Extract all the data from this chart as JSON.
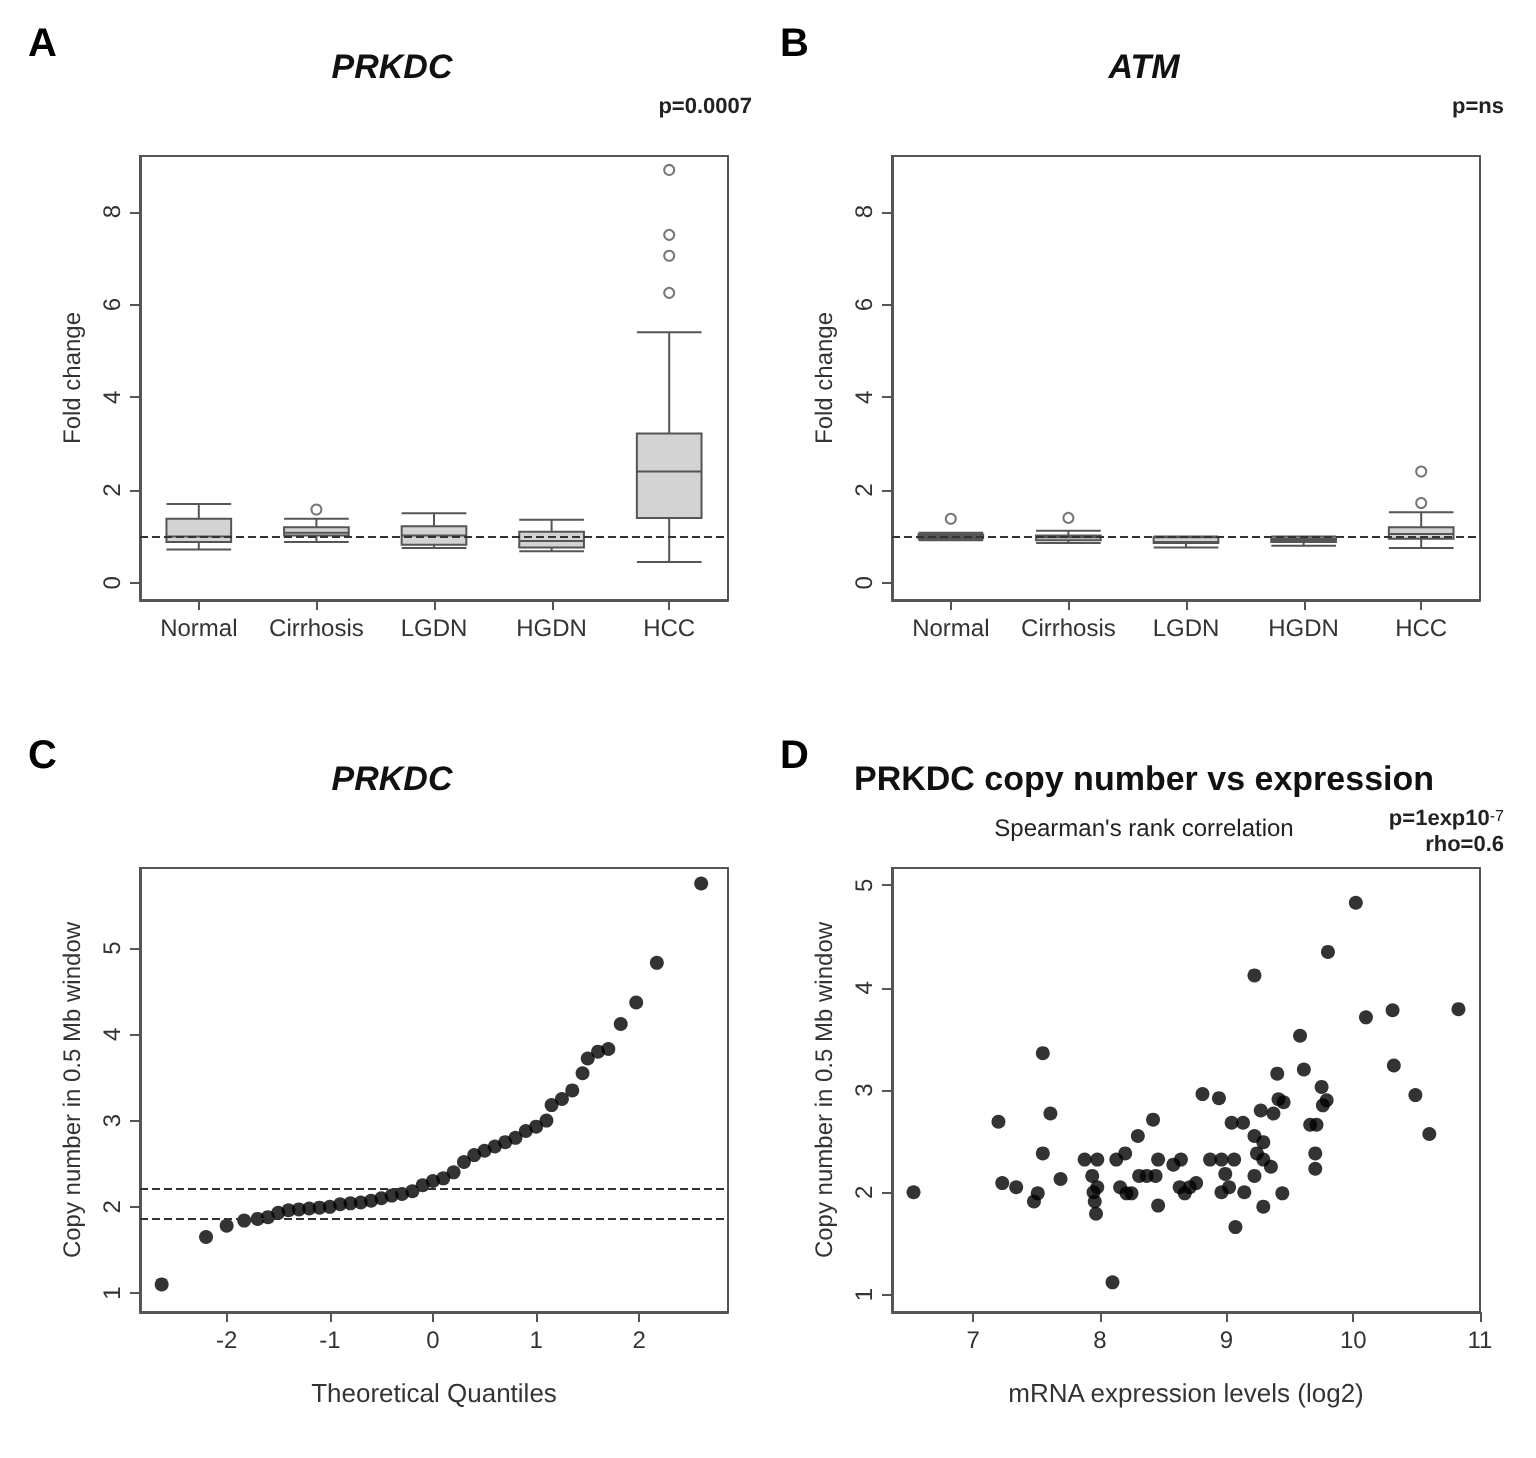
{
  "chart_data": [
    {
      "type": "box",
      "title": "PRKDC",
      "ylabel": "Fold change",
      "categories": [
        "Normal",
        "Cirrhosis",
        "LGDN",
        "HGDN",
        "HCC"
      ],
      "ylim": [
        -0.37,
        9.2
      ],
      "yticks": [
        0,
        2,
        4,
        6,
        8
      ],
      "grid": false,
      "annotations": [
        "A",
        "p=0.0007"
      ],
      "ref_lines": [
        {
          "axis": "y",
          "value": 1,
          "line_style": "dashed"
        }
      ],
      "series": [
        {
          "color": "#d3d3d3",
          "boxes": [
            {
              "low": 0.72,
              "q1": 0.88,
              "median": 1.0,
              "q3": 1.38,
              "high": 1.7
            },
            {
              "low": 0.88,
              "q1": 1.02,
              "median": 1.08,
              "q3": 1.2,
              "high": 1.38,
              "outliers": [
                1.58
              ]
            },
            {
              "low": 0.75,
              "q1": 0.82,
              "median": 1.02,
              "q3": 1.22,
              "high": 1.5
            },
            {
              "low": 0.68,
              "q1": 0.76,
              "median": 0.9,
              "q3": 1.1,
              "high": 1.36
            },
            {
              "low": 0.45,
              "q1": 1.4,
              "median": 2.4,
              "q3": 3.22,
              "high": 5.4,
              "outliers": [
                6.25,
                7.05,
                7.5,
                8.9
              ]
            }
          ]
        }
      ]
    },
    {
      "type": "box",
      "title": "ATM",
      "ylabel": "Fold change",
      "categories": [
        "Normal",
        "Cirrhosis",
        "LGDN",
        "HGDN",
        "HCC"
      ],
      "ylim": [
        -0.37,
        9.2
      ],
      "yticks": [
        0,
        2,
        4,
        6,
        8
      ],
      "grid": false,
      "annotations": [
        "B",
        "p=ns"
      ],
      "ref_lines": [
        {
          "axis": "y",
          "value": 1,
          "line_style": "dashed"
        }
      ],
      "series": [
        {
          "color": "#d3d3d3",
          "boxes": [
            {
              "low": 0.92,
              "q1": 0.96,
              "median": 1.0,
              "q3": 1.04,
              "high": 1.08,
              "outliers": [
                1.38
              ]
            },
            {
              "low": 0.86,
              "q1": 0.92,
              "median": 0.98,
              "q3": 1.02,
              "high": 1.12,
              "outliers": [
                1.4
              ]
            },
            {
              "low": 0.76,
              "q1": 0.86,
              "median": 0.88,
              "q3": 0.98,
              "high": 1.0
            },
            {
              "low": 0.8,
              "q1": 0.88,
              "median": 0.92,
              "q3": 0.95,
              "high": 1.0
            },
            {
              "low": 0.75,
              "q1": 0.95,
              "median": 1.05,
              "q3": 1.2,
              "high": 1.52,
              "outliers": [
                1.72,
                2.4
              ]
            }
          ]
        }
      ]
    },
    {
      "type": "scatter",
      "title": "PRKDC",
      "xlabel": "Theoretical Quantiles",
      "ylabel": "Copy number in 0.5 Mb window",
      "xlim": [
        -2.84,
        2.86
      ],
      "xticks": [
        -2,
        -1,
        0,
        1,
        2
      ],
      "ylim": [
        0.78,
        5.93
      ],
      "yticks": [
        1,
        2,
        3,
        4,
        5
      ],
      "grid": false,
      "marker": "circle",
      "annotations": [
        "C"
      ],
      "ref_lines": [
        {
          "axis": "y",
          "value": 2.22,
          "line_style": "dashed"
        },
        {
          "axis": "y",
          "value": 1.87,
          "line_style": "dashed"
        }
      ],
      "x": [
        -2.63,
        -2.2,
        -2.0,
        -1.83,
        -1.7,
        -1.6,
        -1.5,
        -1.4,
        -1.3,
        -1.2,
        -1.1,
        -1.0,
        -0.9,
        -0.8,
        -0.7,
        -0.6,
        -0.5,
        -0.4,
        -0.3,
        -0.2,
        -0.1,
        0,
        0.1,
        0.2,
        0.3,
        0.4,
        0.5,
        0.6,
        0.7,
        0.8,
        0.9,
        1.0,
        1.1,
        1.15,
        1.25,
        1.35,
        1.45,
        1.5,
        1.6,
        1.7,
        1.82,
        1.97,
        2.17,
        2.6
      ],
      "series": [
        {
          "color": "#000000",
          "values": [
            1.1,
            1.65,
            1.78,
            1.84,
            1.86,
            1.88,
            1.93,
            1.96,
            1.97,
            1.98,
            1.99,
            2.0,
            2.03,
            2.04,
            2.05,
            2.07,
            2.1,
            2.13,
            2.15,
            2.18,
            2.25,
            2.3,
            2.33,
            2.4,
            2.52,
            2.6,
            2.65,
            2.7,
            2.75,
            2.8,
            2.88,
            2.93,
            3.0,
            3.18,
            3.25,
            3.35,
            3.55,
            3.72,
            3.8,
            3.83,
            4.12,
            4.37,
            4.83,
            5.75
          ]
        }
      ]
    },
    {
      "type": "scatter",
      "title": "PRKDC copy number vs expression",
      "subtitle": "Spearman's rank correlation",
      "xlabel": "mRNA expression levels (log2)",
      "ylabel": "Copy number in 0.5 Mb window",
      "xlim": [
        6.36,
        11.0
      ],
      "xticks": [
        7,
        8,
        9,
        10,
        11
      ],
      "ylim": [
        0.83,
        5.17
      ],
      "yticks": [
        1,
        2,
        3,
        4,
        5
      ],
      "grid": false,
      "marker": "circle",
      "annotations": [
        "D",
        "p=1exp10$^{-7}$",
        "rho=0.6"
      ],
      "x": [
        6.53,
        7.2,
        7.23,
        7.34,
        7.48,
        7.51,
        7.55,
        7.55,
        7.61,
        7.69,
        7.88,
        7.94,
        7.95,
        7.96,
        7.97,
        7.98,
        7.98,
        8.1,
        8.13,
        8.16,
        8.2,
        8.21,
        8.25,
        8.3,
        8.31,
        8.37,
        8.42,
        8.44,
        8.46,
        8.46,
        8.58,
        8.63,
        8.64,
        8.67,
        8.71,
        8.76,
        8.81,
        8.87,
        8.94,
        8.96,
        8.96,
        8.99,
        9.02,
        9.04,
        9.06,
        9.07,
        9.13,
        9.14,
        9.22,
        9.22,
        9.22,
        9.24,
        9.27,
        9.29,
        9.29,
        9.29,
        9.35,
        9.37,
        9.4,
        9.41,
        9.44,
        9.45,
        9.58,
        9.61,
        9.66,
        9.7,
        9.7,
        9.71,
        9.75,
        9.76,
        9.79,
        9.8,
        10.02,
        10.1,
        10.31,
        10.32,
        10.49,
        10.6,
        10.83
      ],
      "series": [
        {
          "color": "#000000",
          "values": [
            2.0,
            2.69,
            2.09,
            2.05,
            1.91,
            1.99,
            3.36,
            2.38,
            2.77,
            2.13,
            2.32,
            2.16,
            2.0,
            1.91,
            1.79,
            2.32,
            2.05,
            1.12,
            2.32,
            2.05,
            2.38,
            1.99,
            1.99,
            2.55,
            2.16,
            2.16,
            2.71,
            2.16,
            2.32,
            1.87,
            2.27,
            2.05,
            2.32,
            1.99,
            2.05,
            2.09,
            2.96,
            2.32,
            2.92,
            2.32,
            2.0,
            2.18,
            2.05,
            2.68,
            2.32,
            1.66,
            2.68,
            2.0,
            2.55,
            4.12,
            2.16,
            2.38,
            2.8,
            2.49,
            2.32,
            1.86,
            2.25,
            2.77,
            3.16,
            2.91,
            1.99,
            2.88,
            3.53,
            3.2,
            2.66,
            2.38,
            2.23,
            2.66,
            3.03,
            2.85,
            2.9,
            4.35,
            4.83,
            3.71,
            3.78,
            3.24,
            2.95,
            2.57,
            3.79
          ]
        }
      ]
    }
  ]
}
